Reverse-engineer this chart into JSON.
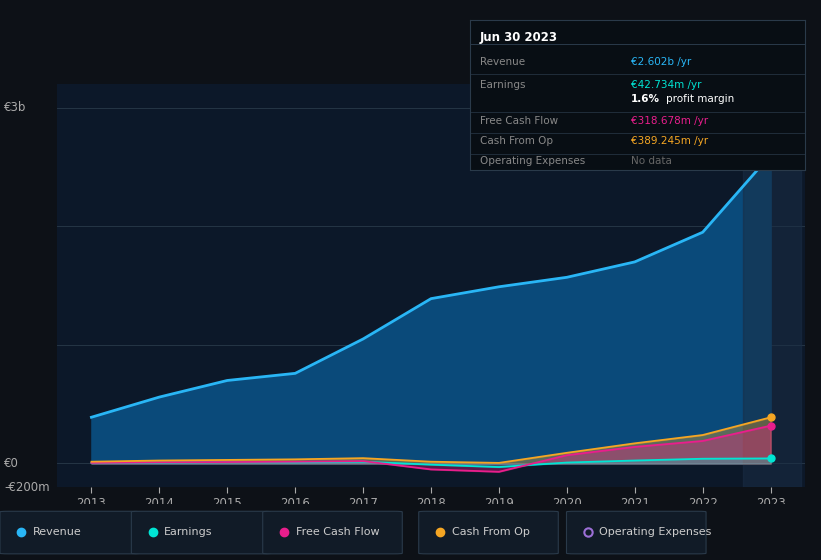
{
  "background_color": "#0d1117",
  "plot_bg_color": "#0c1829",
  "title": "Jun 30 2023",
  "years": [
    2013,
    2014,
    2015,
    2016,
    2017,
    2018,
    2019,
    2020,
    2021,
    2022,
    2023
  ],
  "revenue": [
    390,
    560,
    700,
    760,
    1050,
    1390,
    1490,
    1570,
    1700,
    1950,
    2602
  ],
  "earnings": [
    5,
    8,
    12,
    10,
    15,
    -10,
    -30,
    8,
    25,
    40,
    42.734
  ],
  "free_cash_flow": [
    5,
    10,
    12,
    15,
    20,
    -50,
    -70,
    70,
    140,
    190,
    318.678
  ],
  "cash_from_op": [
    15,
    25,
    30,
    35,
    45,
    15,
    5,
    90,
    170,
    240,
    389.245
  ],
  "revenue_color": "#29b6f6",
  "revenue_fill_color": "#0a4a7a",
  "earnings_color": "#00e5d4",
  "fcf_color": "#e91e8c",
  "cashfromop_color": "#f5a623",
  "opex_color": "#9c6fd6",
  "ylim_min": -200,
  "ylim_max": 3200,
  "ytick_positions": [
    -200,
    0,
    3000
  ],
  "ytick_labels": [
    "-€200m",
    "€0",
    "€3b"
  ],
  "xlabel_years": [
    2013,
    2014,
    2015,
    2016,
    2017,
    2018,
    2019,
    2020,
    2021,
    2022,
    2023
  ],
  "grid_lines": [
    -200,
    0,
    1000,
    2000,
    3000
  ],
  "tooltip": {
    "title": "Jun 30 2023",
    "rows": [
      {
        "label": "Revenue",
        "value": "€2.602b /yr",
        "value_color": "#29b6f6"
      },
      {
        "label": "Earnings",
        "value": "€42.734m /yr",
        "value_color": "#00e5d4"
      },
      {
        "label": "",
        "value": "1.6%",
        "value_color": "#ffffff",
        "suffix": " profit margin",
        "suffix_color": "#ffffff"
      },
      {
        "label": "Free Cash Flow",
        "value": "€318.678m /yr",
        "value_color": "#e91e8c"
      },
      {
        "label": "Cash From Op",
        "value": "€389.245m /yr",
        "value_color": "#f5a623"
      },
      {
        "label": "Operating Expenses",
        "value": "No data",
        "value_color": "#666666"
      }
    ]
  },
  "legend_items": [
    {
      "label": "Revenue",
      "color": "#29b6f6",
      "filled": true
    },
    {
      "label": "Earnings",
      "color": "#00e5d4",
      "filled": true
    },
    {
      "label": "Free Cash Flow",
      "color": "#e91e8c",
      "filled": true
    },
    {
      "label": "Cash From Op",
      "color": "#f5a623",
      "filled": true
    },
    {
      "label": "Operating Expenses",
      "color": "#9c6fd6",
      "filled": false
    }
  ]
}
